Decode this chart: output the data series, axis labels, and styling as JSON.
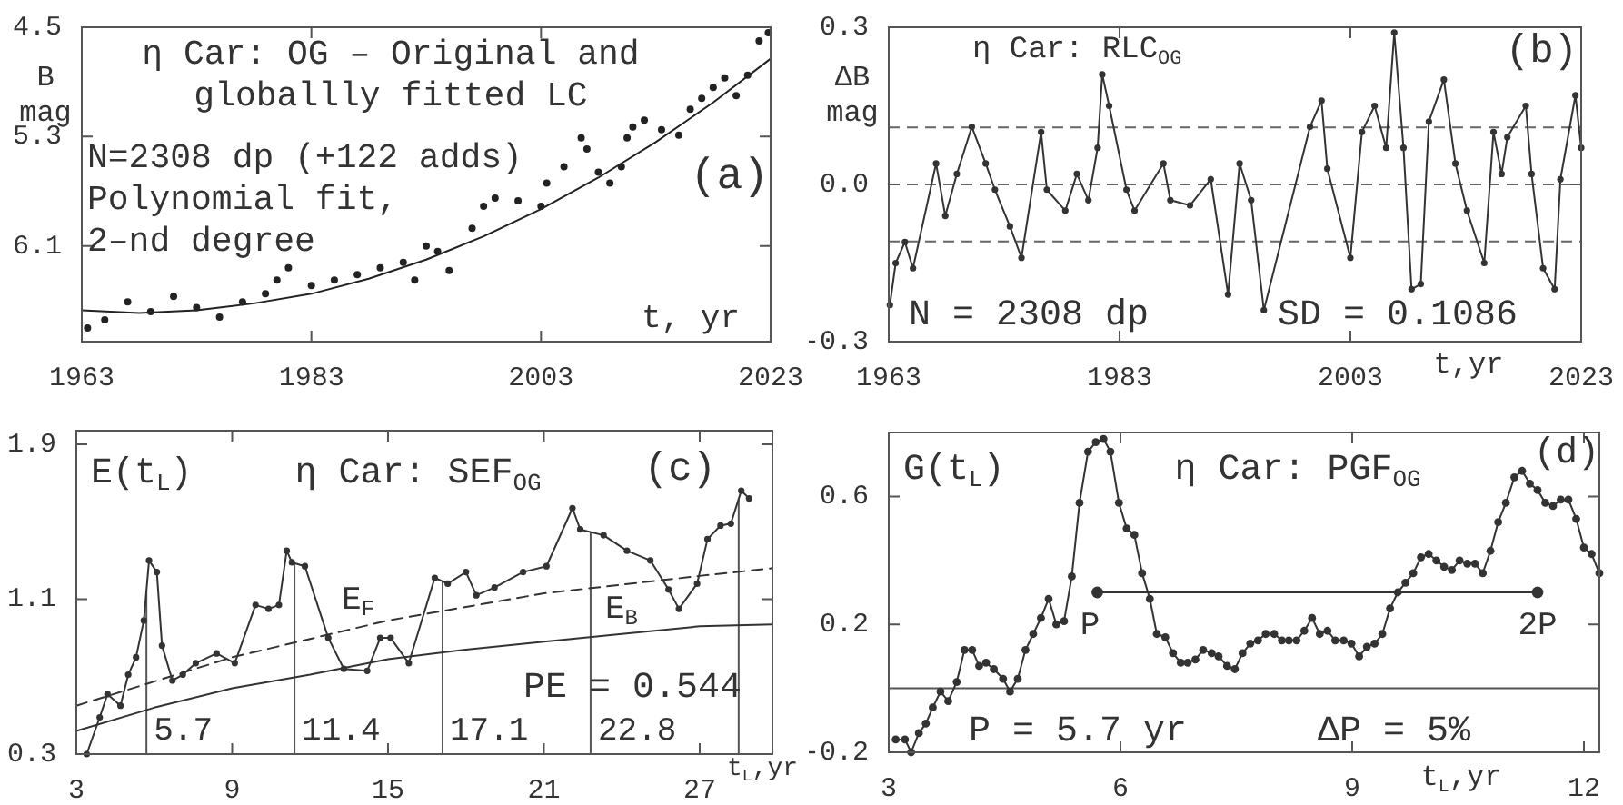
{
  "chart_data": [
    {
      "type": "scatter",
      "title": "η Car: OG – Original and\ngloballly fitted LC",
      "xlabel": "t, yr",
      "ylabel": "B\nmag",
      "xlim": [
        1963,
        2023
      ],
      "xticks": [
        1963,
        1983,
        2003,
        2023
      ],
      "ylim": [
        6.8,
        4.5
      ],
      "yticks": [
        4.5,
        5.3,
        6.1
      ],
      "marker": "circle",
      "annotations": [
        "N=2308 dp (+122 adds)",
        "Polynomial fit,",
        "2–nd degree",
        "(a)"
      ],
      "series": [
        {
          "color": "#222222",
          "x": [
            1963.5,
            1965,
            1967,
            1969,
            1971,
            1973,
            1975,
            1977,
            1979,
            1980,
            1981,
            1983,
            1985,
            1987,
            1989,
            1991,
            1992,
            1993,
            1994,
            1995,
            1997,
            1998,
            1999,
            2001,
            2003,
            2003.5,
            2005,
            2006.5,
            2007,
            2008,
            2009,
            2010,
            2010.5,
            2011,
            2012,
            2013.5,
            2015,
            2016,
            2017,
            2018,
            2019,
            2020,
            2021,
            2022,
            2022.8
          ],
          "values": [
            6.7,
            6.64,
            6.51,
            6.58,
            6.47,
            6.55,
            6.62,
            6.51,
            6.45,
            6.35,
            6.26,
            6.39,
            6.35,
            6.31,
            6.26,
            6.22,
            6.35,
            6.1,
            6.14,
            6.28,
            5.97,
            5.81,
            5.75,
            5.77,
            5.81,
            5.64,
            5.52,
            5.31,
            5.39,
            5.56,
            5.64,
            5.52,
            5.31,
            5.23,
            5.18,
            5.25,
            5.29,
            5.1,
            5.02,
            4.94,
            4.87,
            5.0,
            4.85,
            4.6,
            4.54
          ]
        },
        {
          "type": "line",
          "color": "#222222",
          "marker": "none",
          "x": [
            1963,
            1968,
            1973,
            1978,
            1983,
            1988,
            1993,
            1998,
            2003,
            2008,
            2013,
            2018,
            2023
          ],
          "values": [
            6.57,
            6.59,
            6.57,
            6.52,
            6.45,
            6.34,
            6.2,
            6.03,
            5.83,
            5.6,
            5.34,
            5.05,
            4.73
          ]
        }
      ]
    },
    {
      "type": "line",
      "title": "η Car: RLC$_{OG}$",
      "xlabel": "t,yr",
      "ylabel": "ΔB\nmag",
      "xlim": [
        1963,
        2023
      ],
      "xticks": [
        1963,
        1983,
        2003,
        2023
      ],
      "ylim": [
        -0.3,
        0.3
      ],
      "yticks": [
        -0.3,
        {
          "value": 0,
          "label": "0.0"
        },
        0.3
      ],
      "marker": "circle",
      "annotations": [
        "N = 2308 dp",
        "SD = 0.1086",
        "(b)"
      ],
      "ref_lines": [
        {
          "axis": "y",
          "value": 0.1086,
          "color": "#666666",
          "line_style": "dashed"
        },
        {
          "axis": "y",
          "value": 0,
          "color": "#666666",
          "line_style": "dashed"
        },
        {
          "axis": "y",
          "value": -0.1086,
          "color": "#666666",
          "line_style": "dashed"
        }
      ],
      "series": [
        {
          "color": "#333333",
          "x": [
            1963.1,
            1963.6,
            1964.4,
            1965.1,
            1967.1,
            1967.9,
            1968.9,
            1970.2,
            1971.4,
            1972.2,
            1973.5,
            1974.5,
            1976.2,
            1976.7,
            1978.3,
            1979.3,
            1980.3,
            1981.1,
            1981.5,
            1982.1,
            1983.6,
            1984.3,
            1986.8,
            1987.4,
            1989.1,
            1990.9,
            1992.4,
            1993.4,
            1994.4,
            1995.5,
            1999.5,
            2000.5,
            2001.0,
            2003.0,
            2004.0,
            2005.1,
            2006.1,
            2006.8,
            2007.6,
            2008.3,
            2009.1,
            2009.8,
            2011.1,
            2012.1,
            2013.1,
            2014.6,
            2015.4,
            2016.1,
            2016.6,
            2018.2,
            2018.7,
            2019.7,
            2020.7,
            2021.2,
            2022.5,
            2023.0
          ],
          "values": [
            -0.23,
            -0.15,
            -0.11,
            -0.16,
            0.04,
            -0.06,
            0.02,
            0.11,
            0.04,
            -0.01,
            -0.08,
            -0.14,
            0.1,
            -0.01,
            -0.05,
            0.02,
            -0.03,
            0.07,
            0.21,
            0.15,
            -0.01,
            -0.05,
            0.04,
            -0.03,
            -0.04,
            0.01,
            -0.21,
            0.04,
            -0.03,
            -0.24,
            0.11,
            0.16,
            0.03,
            -0.14,
            0.1,
            0.15,
            0.07,
            0.29,
            0.07,
            -0.2,
            -0.19,
            0.12,
            0.2,
            0.04,
            -0.05,
            -0.15,
            0.1,
            0.02,
            0.09,
            0.15,
            0.02,
            -0.16,
            -0.2,
            0.01,
            0.17,
            0.07
          ]
        }
      ]
    },
    {
      "type": "line",
      "title": "η Car: SEF$_{OG}$",
      "xlabel": "t$_{L}$,yr",
      "ylabel": "E(t$_{L}$)",
      "xlim": [
        3,
        29.8
      ],
      "xticks": [
        3,
        9,
        15,
        21,
        27
      ],
      "ylim": [
        0.3,
        1.97
      ],
      "yticks": [
        0.3,
        1.1,
        1.9
      ],
      "marker": "circle",
      "annotations": [
        "(c)",
        "PE = 0.544",
        "E$_{F}$",
        "E$_{B}$"
      ],
      "ref_lines": [
        {
          "axis": "x",
          "value": 5.7,
          "label": "5.7",
          "color": "#555555"
        },
        {
          "axis": "x",
          "value": 11.4,
          "label": "11.4",
          "color": "#555555"
        },
        {
          "axis": "x",
          "value": 17.1,
          "label": "17.1",
          "color": "#555555"
        },
        {
          "axis": "x",
          "value": 22.8,
          "label": "22.8",
          "color": "#555555"
        },
        {
          "axis": "x",
          "value": 28.5,
          "color": "#555555"
        }
      ],
      "series": [
        {
          "color": "#333333",
          "x": [
            3.4,
            3.9,
            4.2,
            4.7,
            5.0,
            5.3,
            5.6,
            5.8,
            6.1,
            6.3,
            6.7,
            7.1,
            7.6,
            8.4,
            9.1,
            9.9,
            10.4,
            10.8,
            11.1,
            11.3,
            11.8,
            12.7,
            13.3,
            14.2,
            14.7,
            15.1,
            15.8,
            16.8,
            17.3,
            18.0,
            18.4,
            19.1,
            20.2,
            21.1,
            22.1,
            22.4,
            23.3,
            24.2,
            25.1,
            25.8,
            26.2,
            26.9,
            27.3,
            27.8,
            28.2,
            28.6,
            28.9
          ],
          "values": [
            0.3,
            0.49,
            0.61,
            0.55,
            0.71,
            0.8,
            0.99,
            1.3,
            1.24,
            0.86,
            0.68,
            0.71,
            0.77,
            0.82,
            0.77,
            1.07,
            1.05,
            1.07,
            1.35,
            1.29,
            1.27,
            0.9,
            0.74,
            0.73,
            0.9,
            0.9,
            0.77,
            1.21,
            1.18,
            1.24,
            1.12,
            1.16,
            1.24,
            1.27,
            1.57,
            1.46,
            1.43,
            1.35,
            1.3,
            1.15,
            1.05,
            1.18,
            1.41,
            1.48,
            1.49,
            1.66,
            1.62
          ]
        },
        {
          "color": "#333333",
          "marker": "none",
          "line_style": "dashed",
          "x": [
            3,
            9,
            15,
            21,
            27,
            29.8
          ],
          "values": [
            0.55,
            0.8,
            0.99,
            1.13,
            1.22,
            1.26
          ]
        },
        {
          "color": "#333333",
          "marker": "none",
          "x": [
            3,
            6,
            9,
            12,
            15,
            18,
            21,
            24,
            27,
            29.8
          ],
          "values": [
            0.42,
            0.54,
            0.64,
            0.71,
            0.79,
            0.84,
            0.88,
            0.92,
            0.96,
            0.97
          ]
        }
      ]
    },
    {
      "type": "line",
      "title": "η Car: PGF$_{OG}$",
      "xlabel": "t$_{L}$,yr",
      "ylabel": "G(t$_{L}$)",
      "xlim": [
        3,
        12.2
      ],
      "xticks": [
        3,
        6,
        9,
        12
      ],
      "ylim": [
        -0.2,
        0.8
      ],
      "yticks": [
        -0.2,
        0.2,
        0.6
      ],
      "marker": "circle",
      "annotations": [
        "(d)",
        "P = 5.7 yr",
        "ΔP = 5%",
        {
          "text": "P",
          "x": 5.7,
          "y": 0.3
        },
        {
          "text": "2P",
          "x": 11.4,
          "y": 0.3
        }
      ],
      "ref_lines": [
        {
          "axis": "y",
          "value": 0,
          "color": "#555555"
        }
      ],
      "series": [
        {
          "color": "#333333",
          "x": [
            3.09,
            3.21,
            3.29,
            3.39,
            3.48,
            3.57,
            3.67,
            3.77,
            3.88,
            3.98,
            4.08,
            4.17,
            4.26,
            4.36,
            4.48,
            4.57,
            4.67,
            4.77,
            4.87,
            4.97,
            5.07,
            5.17,
            5.27,
            5.37,
            5.47,
            5.58,
            5.68,
            5.78,
            5.87,
            5.98,
            6.08,
            6.18,
            6.28,
            6.38,
            6.47,
            6.58,
            6.68,
            6.78,
            6.87,
            6.97,
            7.07,
            7.18,
            7.27,
            7.38,
            7.48,
            7.58,
            7.68,
            7.78,
            7.88,
            7.99,
            8.09,
            8.18,
            8.28,
            8.38,
            8.48,
            8.58,
            8.68,
            8.78,
            8.89,
            8.99,
            9.09,
            9.19,
            9.29,
            9.39,
            9.49,
            9.59,
            9.69,
            9.79,
            9.89,
            9.99,
            10.09,
            10.19,
            10.29,
            10.39,
            10.49,
            10.59,
            10.69,
            10.79,
            10.89,
            10.99,
            11.1,
            11.2,
            11.3,
            11.4,
            11.5,
            11.6,
            11.7,
            11.8,
            11.9,
            12.0,
            12.1,
            12.2
          ],
          "values": [
            -0.16,
            -0.16,
            -0.2,
            -0.14,
            -0.11,
            -0.06,
            -0.01,
            -0.04,
            0.02,
            0.12,
            0.12,
            0.07,
            0.08,
            0.06,
            0.03,
            -0.01,
            0.03,
            0.12,
            0.17,
            0.22,
            0.28,
            0.2,
            0.21,
            0.35,
            0.58,
            0.74,
            0.77,
            0.78,
            0.74,
            0.58,
            0.5,
            0.48,
            0.36,
            0.28,
            0.17,
            0.16,
            0.11,
            0.08,
            0.08,
            0.09,
            0.12,
            0.11,
            0.1,
            0.07,
            0.06,
            0.11,
            0.14,
            0.15,
            0.17,
            0.17,
            0.15,
            0.15,
            0.15,
            0.18,
            0.22,
            0.17,
            0.18,
            0.15,
            0.15,
            0.14,
            0.1,
            0.13,
            0.14,
            0.17,
            0.25,
            0.3,
            0.33,
            0.36,
            0.41,
            0.42,
            0.4,
            0.38,
            0.37,
            0.4,
            0.39,
            0.39,
            0.36,
            0.43,
            0.52,
            0.58,
            0.66,
            0.68,
            0.64,
            0.62,
            0.58,
            0.57,
            0.59,
            0.59,
            0.53,
            0.44,
            0.42,
            0.36
          ]
        },
        {
          "color": "#333333",
          "x": [
            5.7,
            11.4
          ],
          "values": [
            0.3,
            0.3
          ]
        }
      ]
    }
  ]
}
